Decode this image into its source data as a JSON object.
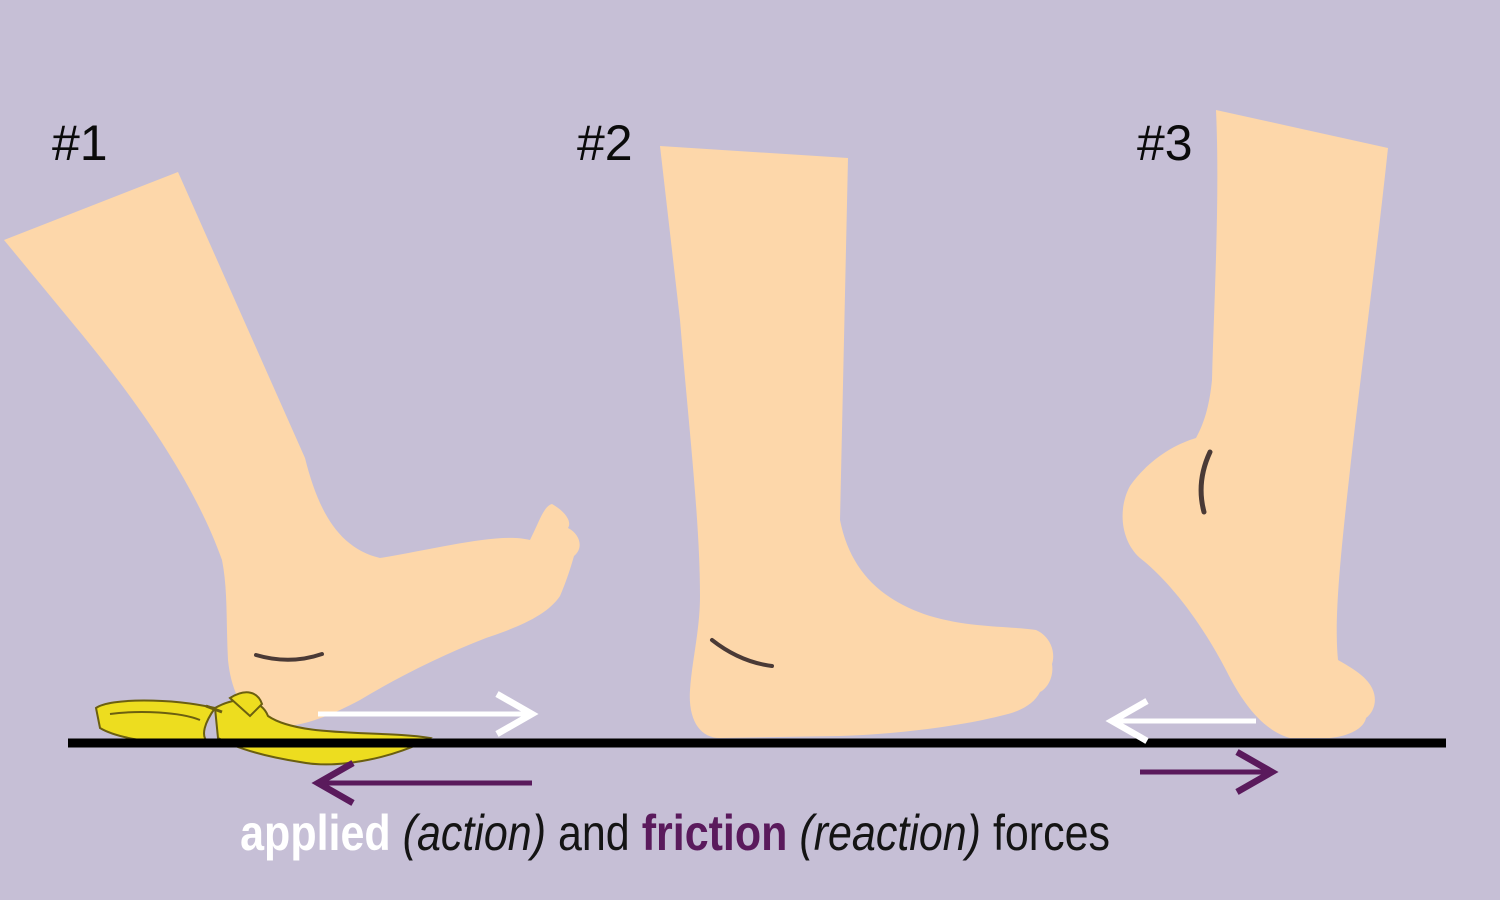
{
  "labels": {
    "step1": "#1",
    "step2": "#2",
    "step3": "#3"
  },
  "caption": {
    "applied": "applied",
    "action": "(action)",
    "and": "and",
    "friction": "friction",
    "reaction": "(reaction)",
    "forces": "forces"
  },
  "colors": {
    "background": "#c6bfd6",
    "skin": "#fdd7aa",
    "ground": "#000000",
    "banana": "#eddd1f",
    "applied_force": "#ffffff",
    "friction_force": "#5a1a5c"
  },
  "icons": {
    "banana_peel": "banana-peel-icon",
    "foot": "foot-illustration"
  }
}
